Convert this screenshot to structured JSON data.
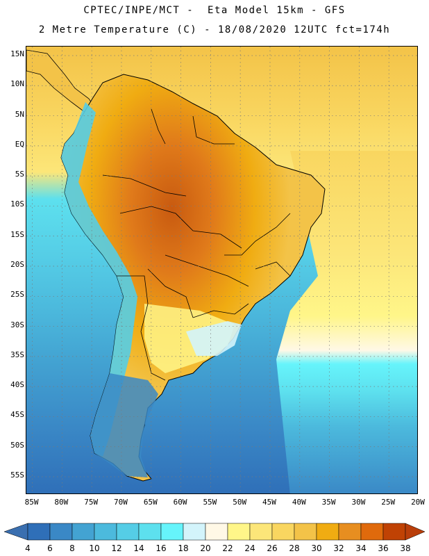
{
  "header": {
    "line1": "CPTEC/INPE/MCT -  Eta Model 15km - GFS",
    "line2": "2 Metre Temperature (C) - 18/08/2020 12UTC fct=174h"
  },
  "map": {
    "variable": "2 Metre Temperature",
    "units": "C",
    "lat_range": [
      -58,
      16.5
    ],
    "lon_range": [
      -86,
      -20
    ],
    "lat_labels": [
      "15N",
      "10N",
      "5N",
      "EQ",
      "5S",
      "10S",
      "15S",
      "20S",
      "25S",
      "30S",
      "35S",
      "40S",
      "45S",
      "50S",
      "55S"
    ],
    "lat_values": [
      15,
      10,
      5,
      0,
      -5,
      -10,
      -15,
      -20,
      -25,
      -30,
      -35,
      -40,
      -45,
      -50,
      -55
    ],
    "lon_labels": [
      "85W",
      "80W",
      "75W",
      "70W",
      "65W",
      "60W",
      "55W",
      "50W",
      "45W",
      "40W",
      "35W",
      "30W",
      "25W",
      "20W"
    ],
    "lon_values": [
      -85,
      -80,
      -75,
      -70,
      -65,
      -60,
      -55,
      -50,
      -45,
      -40,
      -35,
      -30,
      -25,
      -20
    ]
  },
  "colorbar": {
    "labels": [
      "4",
      "6",
      "8",
      "10",
      "12",
      "14",
      "16",
      "18",
      "20",
      "22",
      "24",
      "26",
      "28",
      "30",
      "32",
      "34",
      "36",
      "38"
    ],
    "colors": [
      "#2f6fb8",
      "#3a88c6",
      "#43a3d2",
      "#4cbadd",
      "#55cde6",
      "#5de0ee",
      "#66f4fb",
      "#d3f4fb",
      "#fff8e6",
      "#fff689",
      "#fce679",
      "#f9d660",
      "#f3c348",
      "#f0ac12",
      "#e78e20",
      "#e06a0c",
      "#c04204"
    ],
    "left_end_color": "#3a6fb0",
    "right_end_color": "#b93e0a"
  }
}
